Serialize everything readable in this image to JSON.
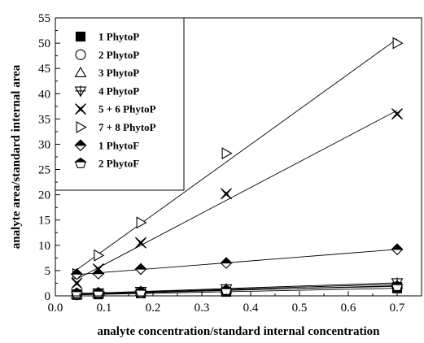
{
  "chart_data": {
    "type": "scatter",
    "title": "",
    "xlabel": "analyte concentration/standard internal concentration",
    "ylabel": "analyte area/standard internal area",
    "xlim": [
      0.0,
      0.75
    ],
    "ylim": [
      0,
      55
    ],
    "xticks": [
      "0.0",
      "0.1",
      "0.2",
      "0.3",
      "0.4",
      "0.5",
      "0.6",
      "0.7"
    ],
    "yticks": [
      "0",
      "5",
      "10",
      "15",
      "20",
      "25",
      "30",
      "35",
      "40",
      "45",
      "50",
      "55"
    ],
    "grid": false,
    "legend_position": "top-left",
    "fit_lines": true,
    "x": [
      0.044,
      0.088,
      0.175,
      0.35,
      0.7
    ],
    "series": [
      {
        "name": "1 PhytoP",
        "marker": "filled-square",
        "values": [
          0.2,
          0.3,
          0.5,
          0.8,
          1.5
        ]
      },
      {
        "name": "2 PhytoP",
        "marker": "open-circle",
        "values": [
          0.2,
          0.4,
          0.6,
          1.1,
          2.0
        ]
      },
      {
        "name": "3 PhytoP",
        "marker": "open-triangle-up",
        "values": [
          0.3,
          0.5,
          0.8,
          1.3,
          2.3
        ]
      },
      {
        "name": "4 PhytoP",
        "marker": "triangle-down-cross",
        "values": [
          0.4,
          0.6,
          0.9,
          1.4,
          2.6
        ]
      },
      {
        "name": "5 + 6 PhytoP",
        "marker": "square-x",
        "values": [
          2.5,
          5.3,
          10.5,
          20.2,
          36.0
        ]
      },
      {
        "name": "7 + 8 PhytoP",
        "marker": "open-triangle-right",
        "values": [
          4.3,
          8.0,
          14.5,
          28.2,
          50.0
        ]
      },
      {
        "name": "1 PhytoF",
        "marker": "half-diamond",
        "values": [
          4.3,
          4.4,
          5.3,
          6.5,
          9.2
        ]
      },
      {
        "name": "2 PhytoF",
        "marker": "half-pentagon",
        "values": [
          0.5,
          0.6,
          0.8,
          1.1,
          1.9
        ]
      }
    ]
  }
}
